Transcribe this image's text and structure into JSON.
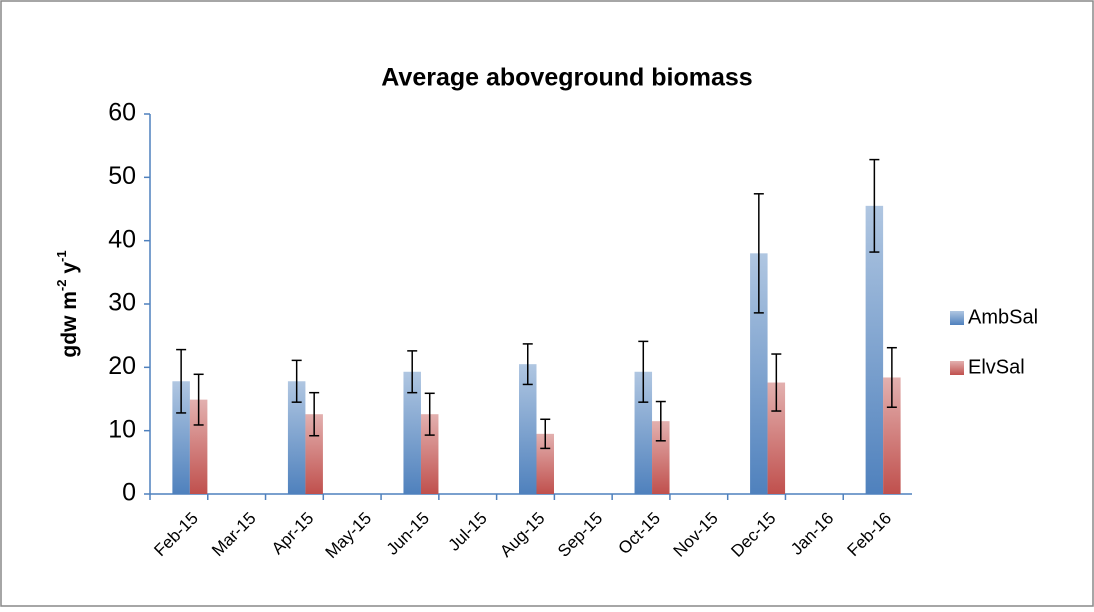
{
  "chart_data": {
    "type": "bar",
    "title": "Average aboveground biomass",
    "y_label": [
      "gdw m",
      "-2",
      " y",
      "-1"
    ],
    "categories": [
      "Feb-15",
      "Mar-15",
      "Apr-15",
      "May-15",
      "Jun-15",
      "Jul-15",
      "Aug-15",
      "Sep-15",
      "Oct-15",
      "Nov-15",
      "Dec-15",
      "Jan-16",
      "Feb-16"
    ],
    "series": [
      {
        "name": "AmbSal",
        "color": "#4f81bd",
        "values": [
          17.8,
          null,
          17.8,
          null,
          19.3,
          null,
          20.5,
          null,
          19.3,
          null,
          38,
          null,
          45.5
        ],
        "errors": [
          5,
          null,
          3.3,
          null,
          3.3,
          null,
          3.2,
          null,
          4.8,
          null,
          9.4,
          null,
          7.3
        ]
      },
      {
        "name": "ElvSal",
        "color": "#c0504d",
        "values": [
          14.9,
          null,
          12.6,
          null,
          12.6,
          null,
          9.5,
          null,
          11.5,
          null,
          17.6,
          null,
          18.4
        ],
        "errors": [
          4,
          null,
          3.4,
          null,
          3.3,
          null,
          2.3,
          null,
          3.1,
          null,
          4.5,
          null,
          4.7
        ]
      }
    ],
    "ylim": [
      0,
      60
    ],
    "yticks": [
      0,
      10,
      20,
      30,
      40,
      50,
      60
    ],
    "grid": false,
    "legend": "right"
  }
}
